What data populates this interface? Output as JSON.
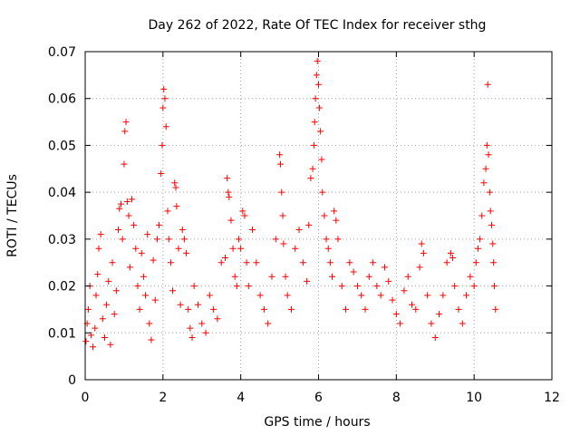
{
  "chart_data": {
    "type": "scatter",
    "title": "Day 262 of 2022, Rate Of TEC Index for receiver sthg",
    "xlabel": "GPS time / hours",
    "ylabel": "ROTI / TECUs",
    "xlim": [
      0,
      12
    ],
    "ylim": [
      0,
      0.07
    ],
    "xticks": [
      0,
      2,
      4,
      6,
      8,
      10,
      12
    ],
    "yticks": [
      0,
      0.01,
      0.02,
      0.03,
      0.04,
      0.05,
      0.06,
      0.07
    ],
    "xtick_labels": [
      "0",
      "2",
      "4",
      "6",
      "8",
      "10",
      "12"
    ],
    "ytick_labels": [
      "0",
      "0.01",
      "0.02",
      "0.03",
      "0.04",
      "0.05",
      "0.06",
      "0.07"
    ],
    "grid": true,
    "marker": "+",
    "color": "#ff0000",
    "series": [
      {
        "name": "ROTI",
        "points": [
          [
            0.02,
            0.0082
          ],
          [
            0.05,
            0.012
          ],
          [
            0.08,
            0.015
          ],
          [
            0.12,
            0.02
          ],
          [
            0.15,
            0.0095
          ],
          [
            0.2,
            0.007
          ],
          [
            0.25,
            0.011
          ],
          [
            0.28,
            0.018
          ],
          [
            0.32,
            0.0225
          ],
          [
            0.35,
            0.028
          ],
          [
            0.4,
            0.031
          ],
          [
            0.45,
            0.013
          ],
          [
            0.5,
            0.009
          ],
          [
            0.55,
            0.016
          ],
          [
            0.6,
            0.021
          ],
          [
            0.65,
            0.0075
          ],
          [
            0.7,
            0.025
          ],
          [
            0.75,
            0.014
          ],
          [
            0.8,
            0.019
          ],
          [
            0.85,
            0.032
          ],
          [
            0.88,
            0.0365
          ],
          [
            0.92,
            0.0375
          ],
          [
            0.96,
            0.03
          ],
          [
            1.0,
            0.046
          ],
          [
            1.02,
            0.053
          ],
          [
            1.05,
            0.055
          ],
          [
            1.08,
            0.038
          ],
          [
            1.12,
            0.035
          ],
          [
            1.15,
            0.024
          ],
          [
            1.2,
            0.0385
          ],
          [
            1.25,
            0.033
          ],
          [
            1.3,
            0.028
          ],
          [
            1.35,
            0.02
          ],
          [
            1.4,
            0.015
          ],
          [
            1.45,
            0.027
          ],
          [
            1.5,
            0.022
          ],
          [
            1.55,
            0.018
          ],
          [
            1.6,
            0.031
          ],
          [
            1.65,
            0.012
          ],
          [
            1.7,
            0.0085
          ],
          [
            1.75,
            0.0255
          ],
          [
            1.8,
            0.017
          ],
          [
            1.85,
            0.03
          ],
          [
            1.9,
            0.033
          ],
          [
            1.95,
            0.044
          ],
          [
            1.98,
            0.05
          ],
          [
            2.0,
            0.058
          ],
          [
            2.02,
            0.062
          ],
          [
            2.05,
            0.06
          ],
          [
            2.08,
            0.054
          ],
          [
            2.12,
            0.036
          ],
          [
            2.15,
            0.03
          ],
          [
            2.2,
            0.025
          ],
          [
            2.25,
            0.019
          ],
          [
            2.3,
            0.042
          ],
          [
            2.33,
            0.041
          ],
          [
            2.35,
            0.037
          ],
          [
            2.4,
            0.028
          ],
          [
            2.45,
            0.016
          ],
          [
            2.5,
            0.032
          ],
          [
            2.55,
            0.03
          ],
          [
            2.6,
            0.027
          ],
          [
            2.65,
            0.015
          ],
          [
            2.7,
            0.011
          ],
          [
            2.75,
            0.009
          ],
          [
            2.8,
            0.02
          ],
          [
            2.9,
            0.016
          ],
          [
            3.0,
            0.012
          ],
          [
            3.1,
            0.01
          ],
          [
            3.2,
            0.018
          ],
          [
            3.3,
            0.015
          ],
          [
            3.4,
            0.013
          ],
          [
            3.5,
            0.025
          ],
          [
            3.6,
            0.026
          ],
          [
            3.65,
            0.043
          ],
          [
            3.68,
            0.04
          ],
          [
            3.7,
            0.039
          ],
          [
            3.75,
            0.034
          ],
          [
            3.8,
            0.028
          ],
          [
            3.85,
            0.022
          ],
          [
            3.9,
            0.02
          ],
          [
            3.95,
            0.03
          ],
          [
            4.0,
            0.028
          ],
          [
            4.05,
            0.036
          ],
          [
            4.1,
            0.035
          ],
          [
            4.15,
            0.025
          ],
          [
            4.2,
            0.02
          ],
          [
            4.3,
            0.032
          ],
          [
            4.4,
            0.025
          ],
          [
            4.5,
            0.018
          ],
          [
            4.6,
            0.015
          ],
          [
            4.7,
            0.012
          ],
          [
            4.8,
            0.022
          ],
          [
            4.9,
            0.03
          ],
          [
            5.0,
            0.048
          ],
          [
            5.02,
            0.046
          ],
          [
            5.05,
            0.04
          ],
          [
            5.08,
            0.035
          ],
          [
            5.1,
            0.029
          ],
          [
            5.15,
            0.022
          ],
          [
            5.2,
            0.018
          ],
          [
            5.3,
            0.015
          ],
          [
            5.4,
            0.028
          ],
          [
            5.5,
            0.032
          ],
          [
            5.6,
            0.025
          ],
          [
            5.7,
            0.021
          ],
          [
            5.75,
            0.033
          ],
          [
            5.8,
            0.043
          ],
          [
            5.85,
            0.045
          ],
          [
            5.88,
            0.05
          ],
          [
            5.9,
            0.055
          ],
          [
            5.92,
            0.06
          ],
          [
            5.95,
            0.065
          ],
          [
            5.97,
            0.068
          ],
          [
            6.0,
            0.063
          ],
          [
            6.02,
            0.058
          ],
          [
            6.05,
            0.053
          ],
          [
            6.08,
            0.047
          ],
          [
            6.1,
            0.04
          ],
          [
            6.15,
            0.035
          ],
          [
            6.2,
            0.03
          ],
          [
            6.25,
            0.028
          ],
          [
            6.3,
            0.025
          ],
          [
            6.35,
            0.022
          ],
          [
            6.4,
            0.036
          ],
          [
            6.45,
            0.034
          ],
          [
            6.5,
            0.03
          ],
          [
            6.6,
            0.02
          ],
          [
            6.7,
            0.015
          ],
          [
            6.8,
            0.025
          ],
          [
            6.9,
            0.023
          ],
          [
            7.0,
            0.02
          ],
          [
            7.1,
            0.018
          ],
          [
            7.2,
            0.015
          ],
          [
            7.3,
            0.022
          ],
          [
            7.4,
            0.025
          ],
          [
            7.5,
            0.02
          ],
          [
            7.6,
            0.018
          ],
          [
            7.7,
            0.024
          ],
          [
            7.8,
            0.021
          ],
          [
            7.9,
            0.017
          ],
          [
            8.0,
            0.014
          ],
          [
            8.1,
            0.012
          ],
          [
            8.2,
            0.019
          ],
          [
            8.3,
            0.022
          ],
          [
            8.4,
            0.016
          ],
          [
            8.5,
            0.015
          ],
          [
            8.6,
            0.024
          ],
          [
            8.65,
            0.029
          ],
          [
            8.7,
            0.027
          ],
          [
            8.8,
            0.018
          ],
          [
            8.9,
            0.012
          ],
          [
            9.0,
            0.009
          ],
          [
            9.1,
            0.014
          ],
          [
            9.2,
            0.018
          ],
          [
            9.3,
            0.025
          ],
          [
            9.4,
            0.027
          ],
          [
            9.45,
            0.026
          ],
          [
            9.5,
            0.02
          ],
          [
            9.6,
            0.015
          ],
          [
            9.7,
            0.012
          ],
          [
            9.8,
            0.018
          ],
          [
            9.9,
            0.022
          ],
          [
            10.0,
            0.02
          ],
          [
            10.05,
            0.025
          ],
          [
            10.1,
            0.028
          ],
          [
            10.15,
            0.03
          ],
          [
            10.2,
            0.035
          ],
          [
            10.25,
            0.042
          ],
          [
            10.3,
            0.045
          ],
          [
            10.33,
            0.05
          ],
          [
            10.35,
            0.063
          ],
          [
            10.37,
            0.048
          ],
          [
            10.4,
            0.04
          ],
          [
            10.42,
            0.036
          ],
          [
            10.45,
            0.033
          ],
          [
            10.48,
            0.029
          ],
          [
            10.5,
            0.025
          ],
          [
            10.52,
            0.02
          ],
          [
            10.55,
            0.015
          ]
        ]
      }
    ]
  }
}
